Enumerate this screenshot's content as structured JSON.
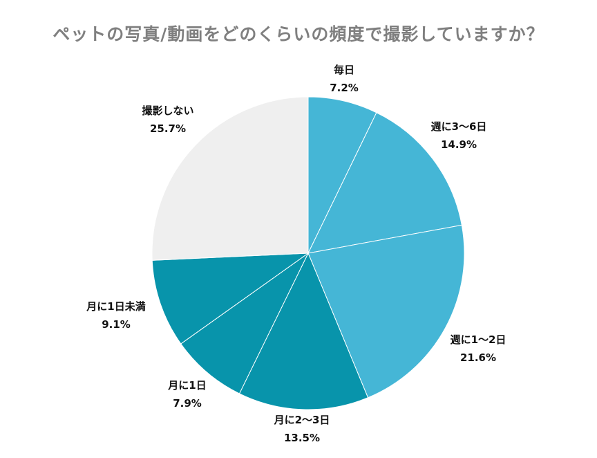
{
  "title": "ペットの写真/動画をどのくらいの頻度で撮影していますか？",
  "chart_data": {
    "type": "pie",
    "title": "ペットの写真/動画をどのくらいの頻度で撮影していますか？",
    "slices": [
      {
        "label": "毎日",
        "value": 7.2,
        "value_label": "7.2%",
        "color": "#45b6d6"
      },
      {
        "label": "週に3〜6日",
        "value": 14.9,
        "value_label": "14.9%",
        "color": "#45b6d6"
      },
      {
        "label": "週に1〜2日",
        "value": 21.6,
        "value_label": "21.6%",
        "color": "#45b6d6"
      },
      {
        "label": "月に2〜3日",
        "value": 13.5,
        "value_label": "13.5%",
        "color": "#0894ab"
      },
      {
        "label": "月に1日",
        "value": 7.9,
        "value_label": "7.9%",
        "color": "#0894ab"
      },
      {
        "label": "月に1日未満",
        "value": 9.1,
        "value_label": "9.1%",
        "color": "#0894ab"
      },
      {
        "label": "撮影しない",
        "value": 25.7,
        "value_label": "25.7%",
        "color": "#efefef"
      }
    ],
    "start": "12 o'clock",
    "direction": "clockwise",
    "legend": "none"
  }
}
